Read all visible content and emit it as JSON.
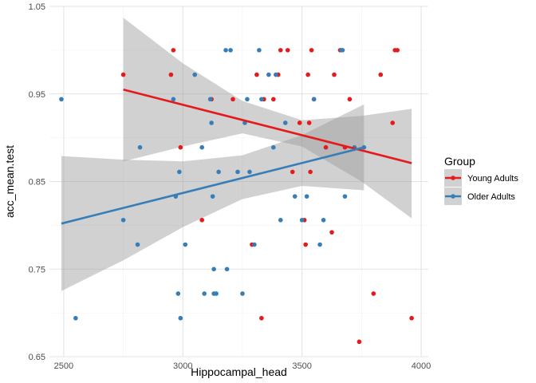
{
  "chart_data": {
    "type": "scatter",
    "title": "",
    "xlabel": "Hippocampal_head",
    "ylabel": "acc_mean.test",
    "xlim": [
      2440,
      4030
    ],
    "ylim": [
      0.65,
      1.05
    ],
    "x_ticks": [
      2500,
      3000,
      3500,
      4000
    ],
    "x_tick_labels": [
      "2500",
      "3000",
      "3500",
      "4000"
    ],
    "y_ticks": [
      0.65,
      0.75,
      0.85,
      0.95,
      1.05
    ],
    "y_tick_labels": [
      "0.65",
      "0.75",
      "0.85",
      "0.95",
      "1.05"
    ],
    "grid": true,
    "legend": {
      "title": "Group",
      "position": "right",
      "entries": [
        {
          "label": "Young Adults",
          "color": "#E41A1C"
        },
        {
          "label": "Older Adults",
          "color": "#377EB8"
        }
      ]
    },
    "series": [
      {
        "name": "Young Adults",
        "color": "#E41A1C",
        "points": [
          [
            2750,
            0.972
          ],
          [
            2950,
            0.972
          ],
          [
            2960,
            1.0
          ],
          [
            2990,
            0.889
          ],
          [
            3080,
            0.806
          ],
          [
            3120,
            0.944
          ],
          [
            3210,
            0.944
          ],
          [
            3290,
            0.778
          ],
          [
            3310,
            0.972
          ],
          [
            3330,
            0.694
          ],
          [
            3340,
            0.944
          ],
          [
            3380,
            0.944
          ],
          [
            3400,
            0.972
          ],
          [
            3410,
            1.0
          ],
          [
            3440,
            1.0
          ],
          [
            3460,
            0.861
          ],
          [
            3490,
            0.917
          ],
          [
            3510,
            0.806
          ],
          [
            3515,
            0.778
          ],
          [
            3525,
            0.972
          ],
          [
            3530,
            0.917
          ],
          [
            3535,
            0.861
          ],
          [
            3540,
            1.0
          ],
          [
            3550,
            0.944
          ],
          [
            3600,
            0.889
          ],
          [
            3625,
            0.792
          ],
          [
            3635,
            0.972
          ],
          [
            3660,
            1.0
          ],
          [
            3680,
            0.889
          ],
          [
            3700,
            0.944
          ],
          [
            3740,
            0.667
          ],
          [
            3800,
            0.722
          ],
          [
            3830,
            0.972
          ],
          [
            3880,
            0.917
          ],
          [
            3890,
            1.0
          ],
          [
            3900,
            1.0
          ],
          [
            3960,
            0.694
          ]
        ],
        "trend": {
          "x": [
            2750,
            3960
          ],
          "y": [
            0.955,
            0.871
          ]
        }
      },
      {
        "name": "Older Adults",
        "color": "#377EB8",
        "points": [
          [
            2490,
            0.944
          ],
          [
            2550,
            0.694
          ],
          [
            2750,
            0.806
          ],
          [
            2810,
            0.778
          ],
          [
            2820,
            0.889
          ],
          [
            2960,
            0.944
          ],
          [
            2970,
            0.833
          ],
          [
            2980,
            0.722
          ],
          [
            2985,
            0.861
          ],
          [
            2990,
            0.694
          ],
          [
            3010,
            0.778
          ],
          [
            3050,
            0.972
          ],
          [
            3080,
            0.889
          ],
          [
            3090,
            0.722
          ],
          [
            3115,
            0.944
          ],
          [
            3120,
            0.917
          ],
          [
            3125,
            0.833
          ],
          [
            3130,
            0.722
          ],
          [
            3130,
            0.75
          ],
          [
            3140,
            0.722
          ],
          [
            3150,
            0.861
          ],
          [
            3180,
            1.0
          ],
          [
            3185,
            0.75
          ],
          [
            3200,
            1.0
          ],
          [
            3230,
            0.861
          ],
          [
            3250,
            0.722
          ],
          [
            3260,
            0.917
          ],
          [
            3270,
            0.944
          ],
          [
            3280,
            0.861
          ],
          [
            3300,
            0.778
          ],
          [
            3320,
            1.0
          ],
          [
            3330,
            0.944
          ],
          [
            3360,
            0.972
          ],
          [
            3380,
            0.889
          ],
          [
            3390,
            0.972
          ],
          [
            3410,
            0.806
          ],
          [
            3430,
            0.917
          ],
          [
            3470,
            0.833
          ],
          [
            3500,
            0.806
          ],
          [
            3520,
            0.833
          ],
          [
            3550,
            0.944
          ],
          [
            3575,
            0.778
          ],
          [
            3590,
            0.806
          ],
          [
            3665,
            1.0
          ],
          [
            3670,
            1.0
          ],
          [
            3680,
            0.833
          ],
          [
            3720,
            0.889
          ],
          [
            3760,
            0.889
          ]
        ],
        "trend": {
          "x": [
            2490,
            3760
          ],
          "y": [
            0.802,
            0.889
          ]
        }
      }
    ],
    "confidence_bands": [
      {
        "series": "Young Adults",
        "x": [
          2750,
          3000,
          3250,
          3500,
          3750,
          3960
        ],
        "lower": [
          0.873,
          0.89,
          0.905,
          0.89,
          0.85,
          0.808
        ],
        "upper": [
          1.037,
          0.985,
          0.942,
          0.92,
          0.925,
          0.933
        ]
      },
      {
        "series": "Older Adults",
        "x": [
          2490,
          2750,
          3000,
          3250,
          3500,
          3760
        ],
        "lower": [
          0.725,
          0.76,
          0.798,
          0.83,
          0.845,
          0.84
        ],
        "upper": [
          0.879,
          0.875,
          0.873,
          0.88,
          0.903,
          0.938
        ]
      }
    ],
    "band_color": "#999999"
  }
}
